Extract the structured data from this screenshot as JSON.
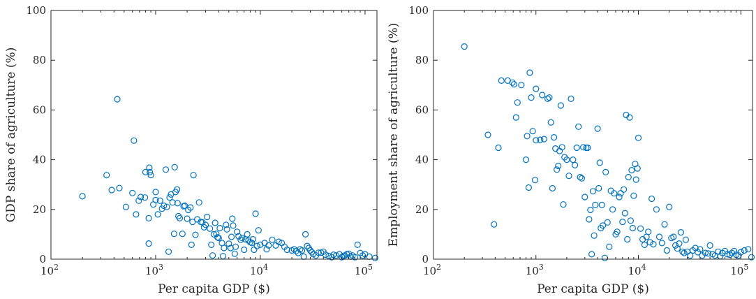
{
  "chart_data": [
    {
      "type": "scatter",
      "xlabel": "Per capita GDP ($)",
      "ylabel": "GDP share of agriculture (%)",
      "x_scale": "log",
      "xlim": [
        100,
        130000
      ],
      "ylim": [
        0,
        100
      ],
      "x_ticks": [
        {
          "value": 100,
          "base": "10",
          "exp": "2"
        },
        {
          "value": 1000,
          "base": "10",
          "exp": "3"
        },
        {
          "value": 10000,
          "base": "10",
          "exp": "4"
        },
        {
          "value": 100000,
          "base": "10",
          "exp": "5"
        }
      ],
      "y_ticks": [
        0,
        20,
        40,
        60,
        80,
        100
      ],
      "marker": "open-circle",
      "color": "#0072BD",
      "grid": false,
      "points": [
        [
          200,
          25.3
        ],
        [
          340,
          33.8
        ],
        [
          380,
          27.8
        ],
        [
          430,
          64.3
        ],
        [
          450,
          28.6
        ],
        [
          520,
          21
        ],
        [
          600,
          26.6
        ],
        [
          620,
          47.7
        ],
        [
          650,
          18
        ],
        [
          690,
          23.5
        ],
        [
          720,
          25
        ],
        [
          790,
          24.8
        ],
        [
          800,
          35
        ],
        [
          860,
          6.3
        ],
        [
          860,
          16.5
        ],
        [
          870,
          36.8
        ],
        [
          880,
          35
        ],
        [
          900,
          33.8
        ],
        [
          950,
          22
        ],
        [
          1000,
          27
        ],
        [
          1000,
          23.8
        ],
        [
          1050,
          18
        ],
        [
          1100,
          23.5
        ],
        [
          1150,
          20.3
        ],
        [
          1200,
          21.5
        ],
        [
          1250,
          36
        ],
        [
          1280,
          21
        ],
        [
          1330,
          3
        ],
        [
          1360,
          24.8
        ],
        [
          1400,
          26
        ],
        [
          1450,
          22.8
        ],
        [
          1500,
          10.2
        ],
        [
          1520,
          37
        ],
        [
          1550,
          27
        ],
        [
          1600,
          28
        ],
        [
          1620,
          22.5
        ],
        [
          1650,
          17.3
        ],
        [
          1700,
          16.5
        ],
        [
          1800,
          10.2
        ],
        [
          1850,
          21.3
        ],
        [
          1900,
          21.5
        ],
        [
          2000,
          16.3
        ],
        [
          2050,
          19.8
        ],
        [
          2150,
          20.8
        ],
        [
          2200,
          5.8
        ],
        [
          2250,
          15
        ],
        [
          2300,
          33.8
        ],
        [
          2400,
          9.8
        ],
        [
          2500,
          16
        ],
        [
          2600,
          22.8
        ],
        [
          2700,
          15
        ],
        [
          2800,
          14.8
        ],
        [
          2900,
          12.8
        ],
        [
          3000,
          13.8
        ],
        [
          3100,
          17
        ],
        [
          3300,
          12.3
        ],
        [
          3400,
          5.8
        ],
        [
          3500,
          1.5
        ],
        [
          3600,
          10
        ],
        [
          3700,
          14.6
        ],
        [
          3800,
          10.2
        ],
        [
          3900,
          8.8
        ],
        [
          4000,
          8.5
        ],
        [
          4100,
          12.5
        ],
        [
          4300,
          6.5
        ],
        [
          4400,
          1.2
        ],
        [
          4500,
          4.5
        ],
        [
          4700,
          13.8
        ],
        [
          4800,
          12
        ],
        [
          5000,
          6.2
        ],
        [
          5200,
          4.5
        ],
        [
          5300,
          9
        ],
        [
          5400,
          16.3
        ],
        [
          5500,
          13.5
        ],
        [
          5700,
          2.2
        ],
        [
          5800,
          5
        ],
        [
          6000,
          11
        ],
        [
          6200,
          9.2
        ],
        [
          6500,
          7.8
        ],
        [
          6700,
          8.5
        ],
        [
          7000,
          3.8
        ],
        [
          7200,
          8
        ],
        [
          7500,
          10
        ],
        [
          7700,
          7.5
        ],
        [
          8000,
          6.8
        ],
        [
          8300,
          6.5
        ],
        [
          8500,
          8
        ],
        [
          8700,
          3.8
        ],
        [
          9000,
          18.3
        ],
        [
          9300,
          5.3
        ],
        [
          9600,
          11.6
        ],
        [
          10000,
          5.8
        ],
        [
          11000,
          6.5
        ],
        [
          11500,
          4
        ],
        [
          12000,
          5.5
        ],
        [
          13000,
          7.8
        ],
        [
          14000,
          5.5
        ],
        [
          15000,
          7
        ],
        [
          16000,
          6.5
        ],
        [
          17000,
          5
        ],
        [
          18000,
          3.8
        ],
        [
          20000,
          3.5
        ],
        [
          21000,
          4
        ],
        [
          22000,
          3.3
        ],
        [
          23000,
          2.5
        ],
        [
          24000,
          4
        ],
        [
          25000,
          3.5
        ],
        [
          26000,
          1
        ],
        [
          27000,
          10
        ],
        [
          28000,
          5.3
        ],
        [
          29000,
          4.5
        ],
        [
          30000,
          3.5
        ],
        [
          31000,
          2.8
        ],
        [
          32000,
          2
        ],
        [
          34000,
          1.5
        ],
        [
          36000,
          2.6
        ],
        [
          38000,
          2.6
        ],
        [
          40000,
          3
        ],
        [
          42000,
          1.8
        ],
        [
          45000,
          1.3
        ],
        [
          48000,
          0.8
        ],
        [
          50000,
          1.8
        ],
        [
          53000,
          1.5
        ],
        [
          57000,
          2
        ],
        [
          60000,
          0.8
        ],
        [
          62000,
          1.3
        ],
        [
          64000,
          1.5
        ],
        [
          67000,
          2
        ],
        [
          70000,
          2.2
        ],
        [
          73000,
          1
        ],
        [
          76000,
          1.5
        ],
        [
          80000,
          0.8
        ],
        [
          85000,
          5.8
        ],
        [
          90000,
          2.5
        ],
        [
          95000,
          1.5
        ],
        [
          100000,
          2
        ],
        [
          110000,
          1
        ],
        [
          125000,
          0.5
        ]
      ]
    },
    {
      "type": "scatter",
      "xlabel": "Per capita GDP ($)",
      "ylabel": "Employment share of agriculture (%)",
      "x_scale": "log",
      "xlim": [
        100,
        130000
      ],
      "ylim": [
        0,
        100
      ],
      "x_ticks": [
        {
          "value": 100,
          "base": "10",
          "exp": "2"
        },
        {
          "value": 1000,
          "base": "10",
          "exp": "3"
        },
        {
          "value": 10000,
          "base": "10",
          "exp": "4"
        },
        {
          "value": 100000,
          "base": "10",
          "exp": "5"
        }
      ],
      "y_ticks": [
        0,
        20,
        40,
        60,
        80,
        100
      ],
      "marker": "open-circle",
      "color": "#0072BD",
      "grid": false,
      "points": [
        [
          200,
          85.5
        ],
        [
          340,
          50
        ],
        [
          390,
          14
        ],
        [
          430,
          44.8
        ],
        [
          460,
          71.8
        ],
        [
          530,
          71.8
        ],
        [
          590,
          71
        ],
        [
          610,
          70.3
        ],
        [
          640,
          57
        ],
        [
          660,
          63
        ],
        [
          720,
          70
        ],
        [
          800,
          40
        ],
        [
          820,
          49.5
        ],
        [
          850,
          28.8
        ],
        [
          870,
          75
        ],
        [
          900,
          65
        ],
        [
          930,
          51.5
        ],
        [
          980,
          31.8
        ],
        [
          1000,
          47.8
        ],
        [
          1000,
          68.5
        ],
        [
          1100,
          48
        ],
        [
          1150,
          66
        ],
        [
          1200,
          48.3
        ],
        [
          1300,
          64.5
        ],
        [
          1350,
          65
        ],
        [
          1400,
          55
        ],
        [
          1450,
          28.5
        ],
        [
          1500,
          49
        ],
        [
          1550,
          44.5
        ],
        [
          1600,
          36
        ],
        [
          1650,
          37.5
        ],
        [
          1700,
          43.5
        ],
        [
          1750,
          61.8
        ],
        [
          1800,
          45
        ],
        [
          1850,
          22
        ],
        [
          1900,
          41
        ],
        [
          2000,
          40
        ],
        [
          2100,
          33.5
        ],
        [
          2200,
          64.5
        ],
        [
          2300,
          40
        ],
        [
          2400,
          37.8
        ],
        [
          2500,
          44.8
        ],
        [
          2600,
          53.3
        ],
        [
          2700,
          33
        ],
        [
          2800,
          32.5
        ],
        [
          2900,
          45
        ],
        [
          3000,
          25
        ],
        [
          3100,
          44.8
        ],
        [
          3200,
          44.8
        ],
        [
          3300,
          16
        ],
        [
          3400,
          19.8
        ],
        [
          3500,
          2
        ],
        [
          3600,
          27.3
        ],
        [
          3700,
          9.5
        ],
        [
          3800,
          21.8
        ],
        [
          4000,
          52.5
        ],
        [
          4100,
          28.5
        ],
        [
          4200,
          38.8
        ],
        [
          4300,
          12.5
        ],
        [
          4400,
          21.8
        ],
        [
          4500,
          13.5
        ],
        [
          4700,
          0.5
        ],
        [
          4800,
          35
        ],
        [
          5000,
          14.8
        ],
        [
          5200,
          5
        ],
        [
          5400,
          27.5
        ],
        [
          5600,
          20
        ],
        [
          5800,
          26.5
        ],
        [
          6000,
          10
        ],
        [
          6200,
          11
        ],
        [
          6500,
          25
        ],
        [
          6700,
          26.5
        ],
        [
          7000,
          15
        ],
        [
          7200,
          28
        ],
        [
          7400,
          18.5
        ],
        [
          7600,
          58
        ],
        [
          7800,
          8
        ],
        [
          8000,
          33
        ],
        [
          8200,
          57
        ],
        [
          8400,
          15.5
        ],
        [
          8600,
          35.8
        ],
        [
          8800,
          12.5
        ],
        [
          9000,
          25.5
        ],
        [
          9300,
          38.3
        ],
        [
          9500,
          32
        ],
        [
          9800,
          36.5
        ],
        [
          10000,
          48.8
        ],
        [
          10500,
          12.3
        ],
        [
          11000,
          8
        ],
        [
          11500,
          5.8
        ],
        [
          12000,
          9
        ],
        [
          12500,
          11
        ],
        [
          13000,
          6.8
        ],
        [
          13500,
          24.3
        ],
        [
          14000,
          6
        ],
        [
          15000,
          20
        ],
        [
          16000,
          9
        ],
        [
          17000,
          6.5
        ],
        [
          18000,
          14
        ],
        [
          19000,
          3.5
        ],
        [
          20000,
          21
        ],
        [
          21000,
          8.5
        ],
        [
          22000,
          9
        ],
        [
          23000,
          5.5
        ],
        [
          24000,
          4.3
        ],
        [
          25000,
          6.3
        ],
        [
          26000,
          10.8
        ],
        [
          27000,
          3
        ],
        [
          28000,
          2.5
        ],
        [
          29000,
          7.8
        ],
        [
          30000,
          3
        ],
        [
          32000,
          1.5
        ],
        [
          34000,
          3.5
        ],
        [
          36000,
          4.5
        ],
        [
          38000,
          2.8
        ],
        [
          40000,
          4
        ],
        [
          42000,
          1.5
        ],
        [
          45000,
          2.5
        ],
        [
          48000,
          2.3
        ],
        [
          50000,
          5.5
        ],
        [
          53000,
          2
        ],
        [
          56000,
          1.5
        ],
        [
          60000,
          3
        ],
        [
          63000,
          1.2
        ],
        [
          66000,
          2.5
        ],
        [
          70000,
          3.3
        ],
        [
          74000,
          2
        ],
        [
          78000,
          1.8
        ],
        [
          82000,
          2.5
        ],
        [
          86000,
          3.3
        ],
        [
          90000,
          1.8
        ],
        [
          95000,
          1.5
        ],
        [
          100000,
          2.8
        ],
        [
          108000,
          3.5
        ],
        [
          118000,
          4
        ],
        [
          127000,
          0.8
        ]
      ]
    }
  ]
}
